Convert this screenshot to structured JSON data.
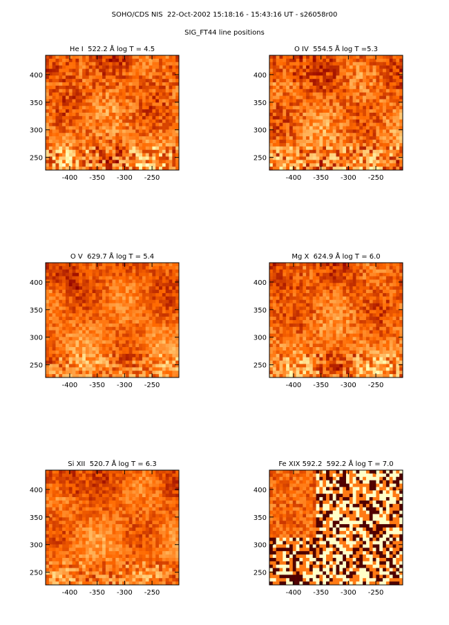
{
  "header": {
    "title": "SOHO/CDS NIS  22-Oct-2002 15:18:16 - 15:43:16 UT - s26058r00",
    "subtitle": "SIG_FT44 line positions"
  },
  "chart_data": [
    {
      "type": "image",
      "title": "He I  522.2 Å log T = 4.5",
      "xlim": [
        -444,
        -201
      ],
      "ylim": [
        227,
        435
      ],
      "xticks": [
        -400,
        -350,
        -300,
        -250
      ],
      "yticks": [
        250,
        300,
        350,
        400
      ]
    },
    {
      "type": "image",
      "title": "O IV  554.5 Å log T =5.3",
      "xlim": [
        -444,
        -201
      ],
      "ylim": [
        227,
        435
      ],
      "xticks": [
        -400,
        -350,
        -300,
        -250
      ],
      "yticks": [
        250,
        300,
        350,
        400
      ]
    },
    {
      "type": "image",
      "title": "O V  629.7 Å log T = 5.4",
      "xlim": [
        -444,
        -201
      ],
      "ylim": [
        227,
        435
      ],
      "xticks": [
        -400,
        -350,
        -300,
        -250
      ],
      "yticks": [
        250,
        300,
        350,
        400
      ]
    },
    {
      "type": "image",
      "title": "Mg X  624.9 Å log T = 6.0",
      "xlim": [
        -444,
        -201
      ],
      "ylim": [
        227,
        435
      ],
      "xticks": [
        -400,
        -350,
        -300,
        -250
      ],
      "yticks": [
        250,
        300,
        350,
        400
      ]
    },
    {
      "type": "image",
      "title": "Si XII  520.7 Å log T = 6.3",
      "xlim": [
        -444,
        -201
      ],
      "ylim": [
        227,
        435
      ],
      "xticks": [
        -400,
        -350,
        -300,
        -250
      ],
      "yticks": [
        250,
        300,
        350,
        400
      ]
    },
    {
      "type": "image",
      "title": "Fe XIX 592.2  592.2 Å log T = 7.0",
      "xlim": [
        -444,
        -201
      ],
      "ylim": [
        227,
        435
      ],
      "xticks": [
        -400,
        -350,
        -300,
        -250
      ],
      "yticks": [
        250,
        300,
        350,
        400
      ]
    }
  ]
}
